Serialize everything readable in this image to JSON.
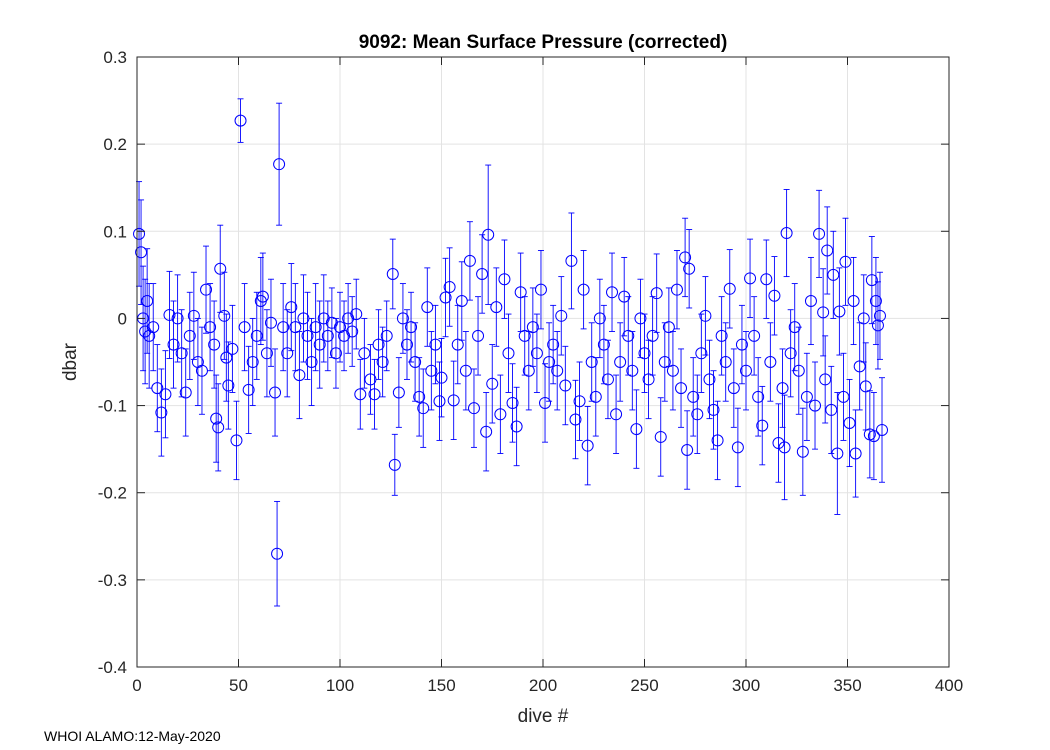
{
  "footer_text": "WHOI ALAMO:12-May-2020",
  "chart_data": {
    "type": "scatter",
    "title": "9092: Mean Surface Pressure (corrected)",
    "xlabel": "dive #",
    "ylabel": "dbar",
    "xlim": [
      0,
      400
    ],
    "ylim": [
      -0.4,
      0.3
    ],
    "xticks": [
      0,
      50,
      100,
      150,
      200,
      250,
      300,
      350,
      400
    ],
    "xtick_labels": [
      "0",
      "50",
      "100",
      "150",
      "200",
      "250",
      "300",
      "350",
      "400"
    ],
    "yticks": [
      0.3,
      0.2,
      0.1,
      0,
      -0.1,
      -0.2,
      -0.3,
      -0.4
    ],
    "ytick_labels": [
      "0.3",
      "0.2",
      "0.1",
      "0",
      "-0.1",
      "-0.2",
      "-0.3",
      "-0.4"
    ],
    "grid": true,
    "marker": "circle",
    "color": "#0000ff",
    "series": [
      {
        "name": "mean surface pressure",
        "error_bars": true,
        "points": [
          {
            "x": 1,
            "y": 0.097,
            "err": 0.06
          },
          {
            "x": 2,
            "y": 0.076,
            "err": 0.06
          },
          {
            "x": 3,
            "y": 0.0,
            "err": 0.06
          },
          {
            "x": 4,
            "y": -0.015,
            "err": 0.06
          },
          {
            "x": 5,
            "y": 0.02,
            "err": 0.06
          },
          {
            "x": 6,
            "y": -0.02,
            "err": 0.06
          },
          {
            "x": 8,
            "y": -0.01,
            "err": 0.05
          },
          {
            "x": 10,
            "y": -0.08,
            "err": 0.05
          },
          {
            "x": 12,
            "y": -0.108,
            "err": 0.05
          },
          {
            "x": 14,
            "y": -0.087,
            "err": 0.05
          },
          {
            "x": 16,
            "y": 0.004,
            "err": 0.05
          },
          {
            "x": 18,
            "y": -0.03,
            "err": 0.05
          },
          {
            "x": 20,
            "y": 0.0,
            "err": 0.05
          },
          {
            "x": 22,
            "y": -0.04,
            "err": 0.05
          },
          {
            "x": 24,
            "y": -0.085,
            "err": 0.05
          },
          {
            "x": 26,
            "y": -0.02,
            "err": 0.05
          },
          {
            "x": 28,
            "y": 0.003,
            "err": 0.05
          },
          {
            "x": 30,
            "y": -0.05,
            "err": 0.05
          },
          {
            "x": 32,
            "y": -0.06,
            "err": 0.05
          },
          {
            "x": 34,
            "y": 0.033,
            "err": 0.05
          },
          {
            "x": 36,
            "y": -0.01,
            "err": 0.05
          },
          {
            "x": 38,
            "y": -0.03,
            "err": 0.05
          },
          {
            "x": 39,
            "y": -0.115,
            "err": 0.05
          },
          {
            "x": 40,
            "y": -0.125,
            "err": 0.05
          },
          {
            "x": 41,
            "y": 0.057,
            "err": 0.05
          },
          {
            "x": 43,
            "y": 0.003,
            "err": 0.05
          },
          {
            "x": 44,
            "y": -0.045,
            "err": 0.05
          },
          {
            "x": 45,
            "y": -0.077,
            "err": 0.05
          },
          {
            "x": 47,
            "y": -0.035,
            "err": 0.05
          },
          {
            "x": 49,
            "y": -0.14,
            "err": 0.045
          },
          {
            "x": 51,
            "y": 0.227,
            "err": 0.025
          },
          {
            "x": 53,
            "y": -0.01,
            "err": 0.05
          },
          {
            "x": 55,
            "y": -0.082,
            "err": 0.05
          },
          {
            "x": 57,
            "y": -0.05,
            "err": 0.05
          },
          {
            "x": 59,
            "y": -0.02,
            "err": 0.05
          },
          {
            "x": 61,
            "y": 0.02,
            "err": 0.05
          },
          {
            "x": 62,
            "y": 0.025,
            "err": 0.05
          },
          {
            "x": 64,
            "y": -0.04,
            "err": 0.05
          },
          {
            "x": 66,
            "y": -0.005,
            "err": 0.05
          },
          {
            "x": 68,
            "y": -0.085,
            "err": 0.05
          },
          {
            "x": 69,
            "y": -0.27,
            "err": 0.06
          },
          {
            "x": 70,
            "y": 0.177,
            "err": 0.07
          },
          {
            "x": 72,
            "y": -0.01,
            "err": 0.05
          },
          {
            "x": 74,
            "y": -0.04,
            "err": 0.05
          },
          {
            "x": 76,
            "y": 0.013,
            "err": 0.05
          },
          {
            "x": 78,
            "y": -0.01,
            "err": 0.05
          },
          {
            "x": 80,
            "y": -0.065,
            "err": 0.05
          },
          {
            "x": 82,
            "y": 0.0,
            "err": 0.05
          },
          {
            "x": 84,
            "y": -0.02,
            "err": 0.05
          },
          {
            "x": 86,
            "y": -0.05,
            "err": 0.05
          },
          {
            "x": 88,
            "y": -0.01,
            "err": 0.05
          },
          {
            "x": 90,
            "y": -0.03,
            "err": 0.05
          },
          {
            "x": 92,
            "y": 0.0,
            "err": 0.05
          },
          {
            "x": 94,
            "y": -0.02,
            "err": 0.04
          },
          {
            "x": 96,
            "y": -0.005,
            "err": 0.04
          },
          {
            "x": 98,
            "y": -0.04,
            "err": 0.04
          },
          {
            "x": 100,
            "y": -0.01,
            "err": 0.04
          },
          {
            "x": 102,
            "y": -0.02,
            "err": 0.04
          },
          {
            "x": 104,
            "y": 0.0,
            "err": 0.04
          },
          {
            "x": 106,
            "y": -0.015,
            "err": 0.04
          },
          {
            "x": 108,
            "y": 0.005,
            "err": 0.04
          },
          {
            "x": 110,
            "y": -0.087,
            "err": 0.04
          },
          {
            "x": 112,
            "y": -0.04,
            "err": 0.04
          },
          {
            "x": 115,
            "y": -0.07,
            "err": 0.04
          },
          {
            "x": 117,
            "y": -0.087,
            "err": 0.04
          },
          {
            "x": 119,
            "y": -0.03,
            "err": 0.04
          },
          {
            "x": 121,
            "y": -0.05,
            "err": 0.04
          },
          {
            "x": 123,
            "y": -0.02,
            "err": 0.04
          },
          {
            "x": 126,
            "y": 0.051,
            "err": 0.04
          },
          {
            "x": 127,
            "y": -0.168,
            "err": 0.035
          },
          {
            "x": 129,
            "y": -0.085,
            "err": 0.04
          },
          {
            "x": 131,
            "y": 0.0,
            "err": 0.04
          },
          {
            "x": 133,
            "y": -0.03,
            "err": 0.04
          },
          {
            "x": 135,
            "y": -0.01,
            "err": 0.04
          },
          {
            "x": 137,
            "y": -0.05,
            "err": 0.045
          },
          {
            "x": 139,
            "y": -0.09,
            "err": 0.045
          },
          {
            "x": 141,
            "y": -0.103,
            "err": 0.045
          },
          {
            "x": 143,
            "y": 0.013,
            "err": 0.045
          },
          {
            "x": 145,
            "y": -0.06,
            "err": 0.045
          },
          {
            "x": 147,
            "y": -0.03,
            "err": 0.045
          },
          {
            "x": 149,
            "y": -0.095,
            "err": 0.045
          },
          {
            "x": 150,
            "y": -0.068,
            "err": 0.045
          },
          {
            "x": 152,
            "y": 0.024,
            "err": 0.045
          },
          {
            "x": 154,
            "y": 0.036,
            "err": 0.045
          },
          {
            "x": 156,
            "y": -0.094,
            "err": 0.045
          },
          {
            "x": 158,
            "y": -0.03,
            "err": 0.045
          },
          {
            "x": 160,
            "y": 0.02,
            "err": 0.045
          },
          {
            "x": 162,
            "y": -0.06,
            "err": 0.045
          },
          {
            "x": 164,
            "y": 0.066,
            "err": 0.045
          },
          {
            "x": 166,
            "y": -0.103,
            "err": 0.045
          },
          {
            "x": 168,
            "y": -0.02,
            "err": 0.045
          },
          {
            "x": 170,
            "y": 0.051,
            "err": 0.045
          },
          {
            "x": 172,
            "y": -0.13,
            "err": 0.045
          },
          {
            "x": 173,
            "y": 0.096,
            "err": 0.08
          },
          {
            "x": 175,
            "y": -0.075,
            "err": 0.045
          },
          {
            "x": 177,
            "y": 0.013,
            "err": 0.045
          },
          {
            "x": 179,
            "y": -0.11,
            "err": 0.045
          },
          {
            "x": 181,
            "y": 0.045,
            "err": 0.045
          },
          {
            "x": 183,
            "y": -0.04,
            "err": 0.045
          },
          {
            "x": 185,
            "y": -0.097,
            "err": 0.045
          },
          {
            "x": 187,
            "y": -0.124,
            "err": 0.045
          },
          {
            "x": 189,
            "y": 0.03,
            "err": 0.045
          },
          {
            "x": 191,
            "y": -0.02,
            "err": 0.045
          },
          {
            "x": 193,
            "y": -0.06,
            "err": 0.045
          },
          {
            "x": 195,
            "y": -0.01,
            "err": 0.045
          },
          {
            "x": 197,
            "y": -0.04,
            "err": 0.045
          },
          {
            "x": 199,
            "y": 0.033,
            "err": 0.045
          },
          {
            "x": 201,
            "y": -0.097,
            "err": 0.045
          },
          {
            "x": 203,
            "y": -0.05,
            "err": 0.045
          },
          {
            "x": 205,
            "y": -0.03,
            "err": 0.045
          },
          {
            "x": 207,
            "y": -0.06,
            "err": 0.045
          },
          {
            "x": 209,
            "y": 0.003,
            "err": 0.045
          },
          {
            "x": 211,
            "y": -0.077,
            "err": 0.045
          },
          {
            "x": 214,
            "y": 0.066,
            "err": 0.055
          },
          {
            "x": 216,
            "y": -0.116,
            "err": 0.045
          },
          {
            "x": 218,
            "y": -0.095,
            "err": 0.045
          },
          {
            "x": 220,
            "y": 0.033,
            "err": 0.045
          },
          {
            "x": 222,
            "y": -0.146,
            "err": 0.045
          },
          {
            "x": 224,
            "y": -0.05,
            "err": 0.045
          },
          {
            "x": 226,
            "y": -0.09,
            "err": 0.045
          },
          {
            "x": 228,
            "y": 0.0,
            "err": 0.045
          },
          {
            "x": 230,
            "y": -0.03,
            "err": 0.045
          },
          {
            "x": 232,
            "y": -0.07,
            "err": 0.045
          },
          {
            "x": 234,
            "y": 0.03,
            "err": 0.045
          },
          {
            "x": 236,
            "y": -0.11,
            "err": 0.045
          },
          {
            "x": 238,
            "y": -0.05,
            "err": 0.045
          },
          {
            "x": 240,
            "y": 0.025,
            "err": 0.045
          },
          {
            "x": 242,
            "y": -0.02,
            "err": 0.045
          },
          {
            "x": 244,
            "y": -0.06,
            "err": 0.045
          },
          {
            "x": 246,
            "y": -0.127,
            "err": 0.045
          },
          {
            "x": 248,
            "y": 0.0,
            "err": 0.045
          },
          {
            "x": 250,
            "y": -0.04,
            "err": 0.045
          },
          {
            "x": 252,
            "y": -0.07,
            "err": 0.045
          },
          {
            "x": 254,
            "y": -0.02,
            "err": 0.045
          },
          {
            "x": 256,
            "y": 0.029,
            "err": 0.045
          },
          {
            "x": 258,
            "y": -0.136,
            "err": 0.045
          },
          {
            "x": 260,
            "y": -0.05,
            "err": 0.045
          },
          {
            "x": 262,
            "y": -0.01,
            "err": 0.045
          },
          {
            "x": 264,
            "y": -0.06,
            "err": 0.045
          },
          {
            "x": 266,
            "y": 0.033,
            "err": 0.045
          },
          {
            "x": 268,
            "y": -0.08,
            "err": 0.045
          },
          {
            "x": 270,
            "y": 0.07,
            "err": 0.045
          },
          {
            "x": 271,
            "y": -0.151,
            "err": 0.045
          },
          {
            "x": 272,
            "y": 0.057,
            "err": 0.045
          },
          {
            "x": 274,
            "y": -0.09,
            "err": 0.045
          },
          {
            "x": 276,
            "y": -0.11,
            "err": 0.045
          },
          {
            "x": 278,
            "y": -0.04,
            "err": 0.045
          },
          {
            "x": 280,
            "y": 0.003,
            "err": 0.045
          },
          {
            "x": 282,
            "y": -0.07,
            "err": 0.045
          },
          {
            "x": 284,
            "y": -0.105,
            "err": 0.045
          },
          {
            "x": 286,
            "y": -0.14,
            "err": 0.045
          },
          {
            "x": 288,
            "y": -0.02,
            "err": 0.045
          },
          {
            "x": 290,
            "y": -0.05,
            "err": 0.045
          },
          {
            "x": 292,
            "y": 0.034,
            "err": 0.045
          },
          {
            "x": 294,
            "y": -0.08,
            "err": 0.045
          },
          {
            "x": 296,
            "y": -0.148,
            "err": 0.045
          },
          {
            "x": 298,
            "y": -0.03,
            "err": 0.045
          },
          {
            "x": 300,
            "y": -0.06,
            "err": 0.045
          },
          {
            "x": 302,
            "y": 0.046,
            "err": 0.045
          },
          {
            "x": 304,
            "y": -0.02,
            "err": 0.045
          },
          {
            "x": 306,
            "y": -0.09,
            "err": 0.045
          },
          {
            "x": 308,
            "y": -0.123,
            "err": 0.045
          },
          {
            "x": 310,
            "y": 0.045,
            "err": 0.045
          },
          {
            "x": 312,
            "y": -0.05,
            "err": 0.045
          },
          {
            "x": 314,
            "y": 0.026,
            "err": 0.045
          },
          {
            "x": 316,
            "y": -0.143,
            "err": 0.045
          },
          {
            "x": 318,
            "y": -0.08,
            "err": 0.045
          },
          {
            "x": 319,
            "y": -0.148,
            "err": 0.06
          },
          {
            "x": 320,
            "y": 0.098,
            "err": 0.05
          },
          {
            "x": 322,
            "y": -0.04,
            "err": 0.05
          },
          {
            "x": 324,
            "y": -0.01,
            "err": 0.05
          },
          {
            "x": 326,
            "y": -0.06,
            "err": 0.05
          },
          {
            "x": 328,
            "y": -0.153,
            "err": 0.05
          },
          {
            "x": 330,
            "y": -0.09,
            "err": 0.05
          },
          {
            "x": 332,
            "y": 0.02,
            "err": 0.05
          },
          {
            "x": 334,
            "y": -0.1,
            "err": 0.05
          },
          {
            "x": 336,
            "y": 0.097,
            "err": 0.05
          },
          {
            "x": 338,
            "y": 0.007,
            "err": 0.05
          },
          {
            "x": 339,
            "y": -0.07,
            "err": 0.05
          },
          {
            "x": 340,
            "y": 0.078,
            "err": 0.05
          },
          {
            "x": 342,
            "y": -0.105,
            "err": 0.05
          },
          {
            "x": 343,
            "y": 0.05,
            "err": 0.05
          },
          {
            "x": 345,
            "y": -0.155,
            "err": 0.07
          },
          {
            "x": 346,
            "y": 0.008,
            "err": 0.05
          },
          {
            "x": 348,
            "y": -0.09,
            "err": 0.05
          },
          {
            "x": 349,
            "y": 0.065,
            "err": 0.05
          },
          {
            "x": 351,
            "y": -0.12,
            "err": 0.05
          },
          {
            "x": 353,
            "y": 0.02,
            "err": 0.05
          },
          {
            "x": 354,
            "y": -0.155,
            "err": 0.05
          },
          {
            "x": 356,
            "y": -0.055,
            "err": 0.05
          },
          {
            "x": 358,
            "y": 0.0,
            "err": 0.05
          },
          {
            "x": 359,
            "y": -0.078,
            "err": 0.05
          },
          {
            "x": 361,
            "y": -0.133,
            "err": 0.05
          },
          {
            "x": 362,
            "y": 0.044,
            "err": 0.05
          },
          {
            "x": 363,
            "y": -0.135,
            "err": 0.05
          },
          {
            "x": 364,
            "y": 0.02,
            "err": 0.05
          },
          {
            "x": 365,
            "y": -0.008,
            "err": 0.05
          },
          {
            "x": 366,
            "y": 0.003,
            "err": 0.05
          },
          {
            "x": 367,
            "y": -0.128,
            "err": 0.06
          }
        ]
      }
    ]
  }
}
